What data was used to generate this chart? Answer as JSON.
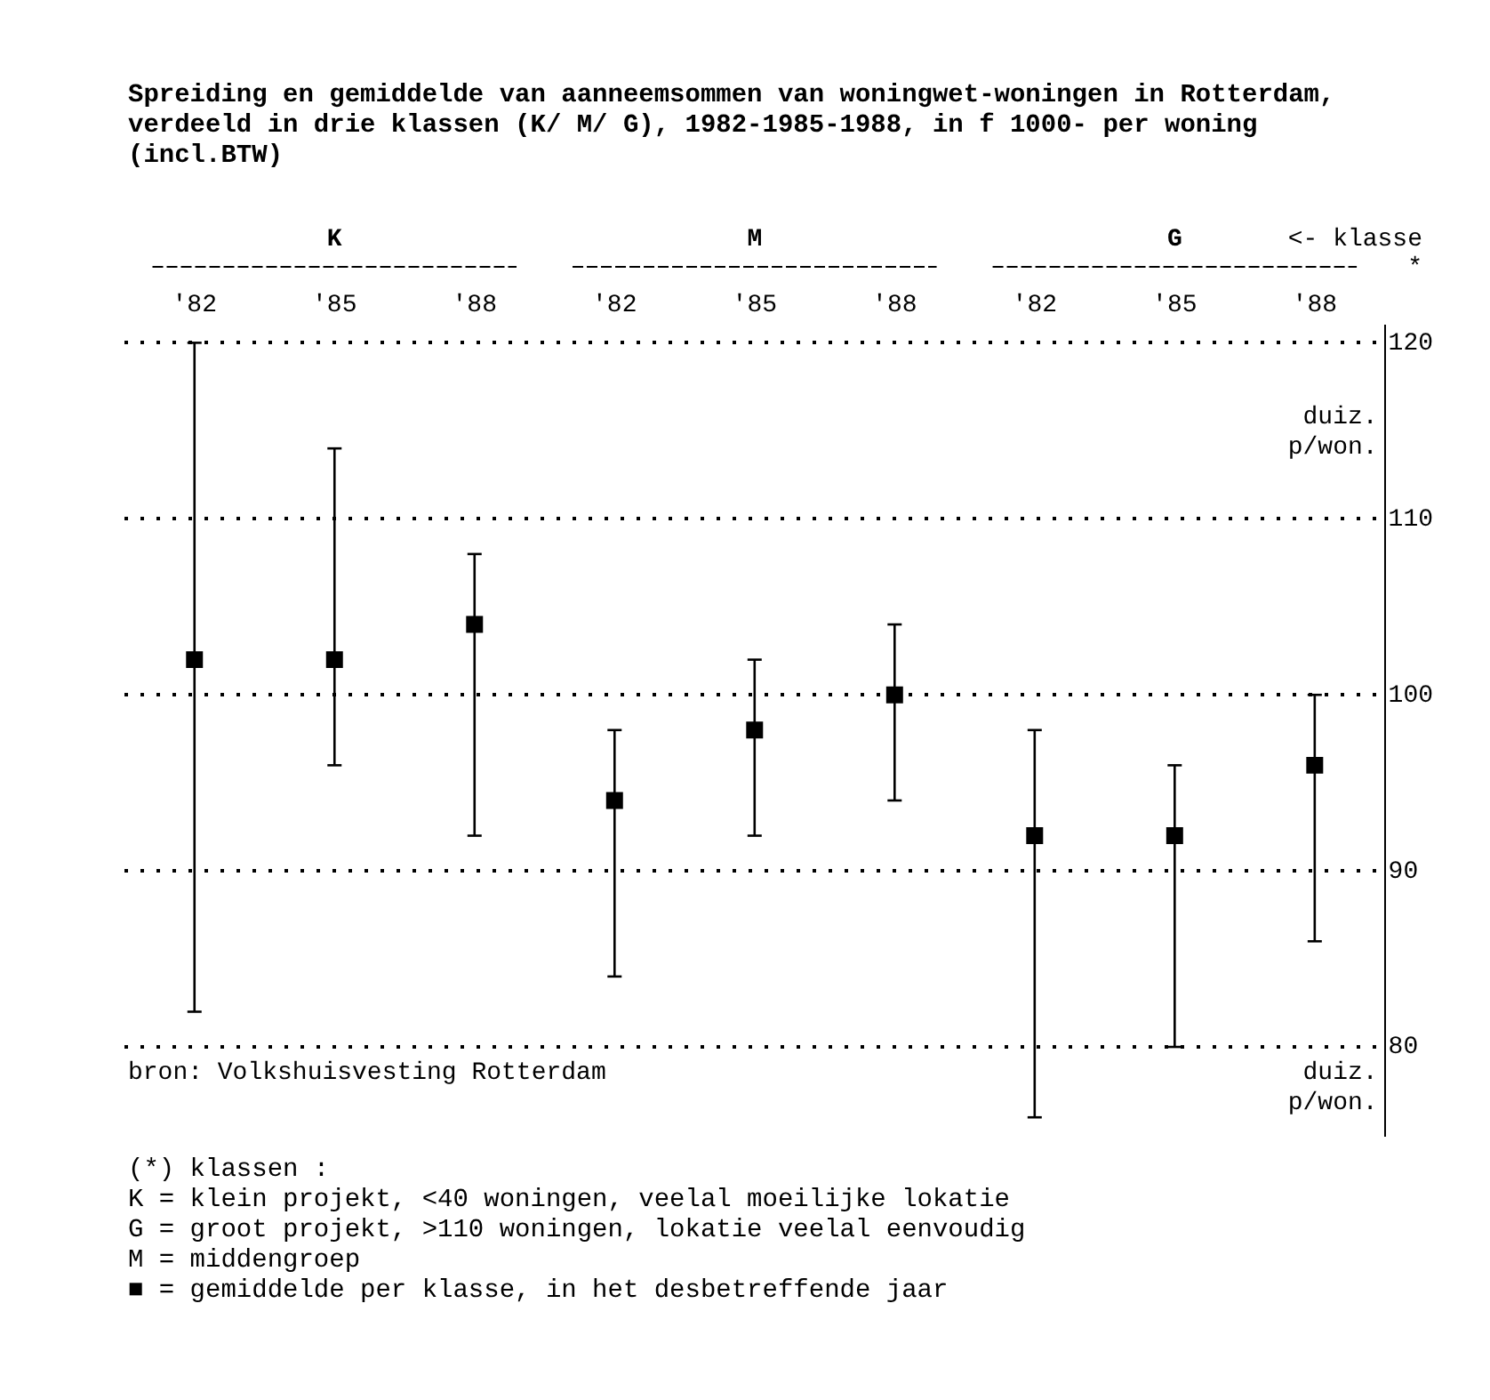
{
  "chart_data": {
    "type": "scatter",
    "title": "Spreiding en gemiddelde van aanneemsommen van woningwet-woningen in Rotterdam, verdeeld in drie klassen (K/ M/ G), 1982-1985-1988, in f 1000- per woning (incl.BTW)",
    "ylabel": "duiz. p/won.",
    "categories": [
      "'82",
      "'85",
      "'88",
      "'82",
      "'85",
      "'88",
      "'82",
      "'85",
      "'88"
    ],
    "values": [
      102,
      102,
      104,
      94,
      98,
      100,
      92,
      92,
      96
    ],
    "errors": [
      [
        82,
        120
      ],
      [
        96,
        114
      ],
      [
        92,
        108
      ],
      [
        84,
        98
      ],
      [
        92,
        102
      ],
      [
        94,
        104
      ],
      [
        76,
        98
      ],
      [
        80,
        96
      ],
      [
        86,
        100
      ]
    ],
    "color": "#000000",
    "marker": "square",
    "ylim": [
      75,
      121
    ],
    "yticks": [
      80,
      90,
      100,
      110,
      120
    ],
    "grid": "y",
    "legend": false,
    "annotations": [
      "K",
      "M",
      "G",
      "<- klasse",
      "*",
      "bron: Volkshuisvesting Rotterdam",
      "duiz. p/won.",
      "(*) klassen :",
      "K = klein projekt, <40 woningen, veelal moeilijke lokatie",
      "G = groot projekt, >110 woningen, lokatie veelal eenvoudig",
      "M = middengroep",
      "■ = gemiddelde per klasse, in het desbetreffende jaar"
    ]
  }
}
